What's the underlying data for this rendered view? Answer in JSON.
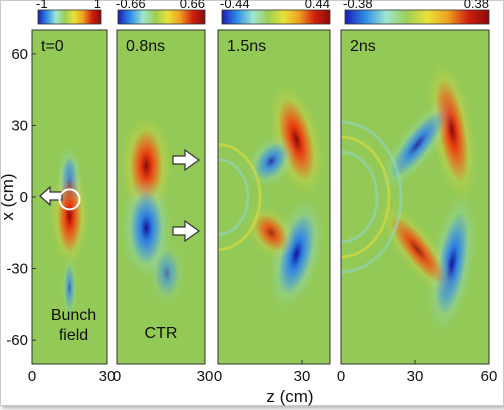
{
  "axes": {
    "ylabel": "x (cm)",
    "xlabel": "z (cm)",
    "y_ticks": [
      "60",
      "30",
      "0",
      "-30",
      "-60"
    ],
    "y_tick_values": [
      60,
      30,
      0,
      -30,
      -60
    ],
    "ylim": [
      -70,
      70
    ]
  },
  "colormap": {
    "stops": [
      "#1b1bb5",
      "#2f8fe8",
      "#9fe6d0",
      "#9ccf55",
      "#e8e23a",
      "#f0a020",
      "#d02010",
      "#8a0a0a"
    ]
  },
  "panels": [
    {
      "id": "t0",
      "time_label": "t=0",
      "colorbar_min": "-1",
      "colorbar_max": "1",
      "x_ticks": [
        "0",
        "30"
      ],
      "xlim": [
        0,
        30
      ],
      "note": [
        "Bunch",
        "field"
      ],
      "markers": [
        "left-arrow",
        "circle"
      ],
      "lobes": [
        {
          "sign": -1,
          "z": 15,
          "x": 4,
          "rz": 2.4,
          "rx": 12,
          "rot": 0,
          "amp": 1.0
        },
        {
          "sign": 1,
          "z": 15,
          "x": -8,
          "rz": 3.5,
          "rx": 14,
          "rot": 0,
          "amp": 1.0
        },
        {
          "sign": -1,
          "z": 15,
          "x": -38,
          "rz": 1.5,
          "rx": 9,
          "rot": 0,
          "amp": 0.6
        }
      ]
    },
    {
      "id": "t08",
      "time_label": "0.8ns",
      "colorbar_min": "-0.66",
      "colorbar_max": "0.66",
      "x_ticks": [
        "0",
        "30"
      ],
      "xlim": [
        0,
        30
      ],
      "note": [
        "CTR"
      ],
      "markers": [
        "right-arrow-upper",
        "right-arrow-lower"
      ],
      "lobes": [
        {
          "sign": 1,
          "z": 10,
          "x": 13,
          "rz": 4,
          "rx": 14,
          "rot": 0,
          "amp": 1.0
        },
        {
          "sign": -1,
          "z": 10,
          "x": -13,
          "rz": 4,
          "rx": 14,
          "rot": 0,
          "amp": 1.0
        },
        {
          "sign": -1,
          "z": 17,
          "x": -32,
          "rz": 3,
          "rx": 9,
          "rot": 0,
          "amp": 0.5
        }
      ]
    },
    {
      "id": "t15",
      "time_label": "1.5ns",
      "colorbar_min": "-0.44",
      "colorbar_max": "0.44",
      "x_ticks": [
        "0",
        "30"
      ],
      "xlim": [
        0,
        40
      ],
      "note": [],
      "markers": [],
      "lobes": [
        {
          "sign": 1,
          "z": 28,
          "x": 24,
          "rz": 4,
          "rx": 16,
          "rot": -14,
          "amp": 1.0
        },
        {
          "sign": -1,
          "z": 28,
          "x": -24,
          "rz": 4,
          "rx": 16,
          "rot": 14,
          "amp": 1.0
        },
        {
          "sign": -1,
          "z": 19,
          "x": 15,
          "rz": 3.5,
          "rx": 8,
          "rot": 38,
          "amp": 0.8
        },
        {
          "sign": 1,
          "z": 19,
          "x": -15,
          "rz": 3.5,
          "rx": 8,
          "rot": -38,
          "amp": 0.8
        }
      ]
    },
    {
      "id": "t2",
      "time_label": "2ns",
      "colorbar_min": "-0.38",
      "colorbar_max": "0.38",
      "x_ticks": [
        "0",
        "30",
        "60"
      ],
      "xlim": [
        0,
        60
      ],
      "note": [],
      "markers": [],
      "lobes": [
        {
          "sign": 1,
          "z": 45,
          "x": 28,
          "rz": 4,
          "rx": 20,
          "rot": -10,
          "amp": 1.0
        },
        {
          "sign": -1,
          "z": 45,
          "x": -28,
          "rz": 4,
          "rx": 20,
          "rot": 10,
          "amp": 1.0
        },
        {
          "sign": -1,
          "z": 31,
          "x": 22,
          "rz": 3.5,
          "rx": 16,
          "rot": 38,
          "amp": 0.85
        },
        {
          "sign": 1,
          "z": 31,
          "x": -22,
          "rz": 3.5,
          "rx": 16,
          "rot": -38,
          "amp": 0.85
        }
      ]
    }
  ]
}
